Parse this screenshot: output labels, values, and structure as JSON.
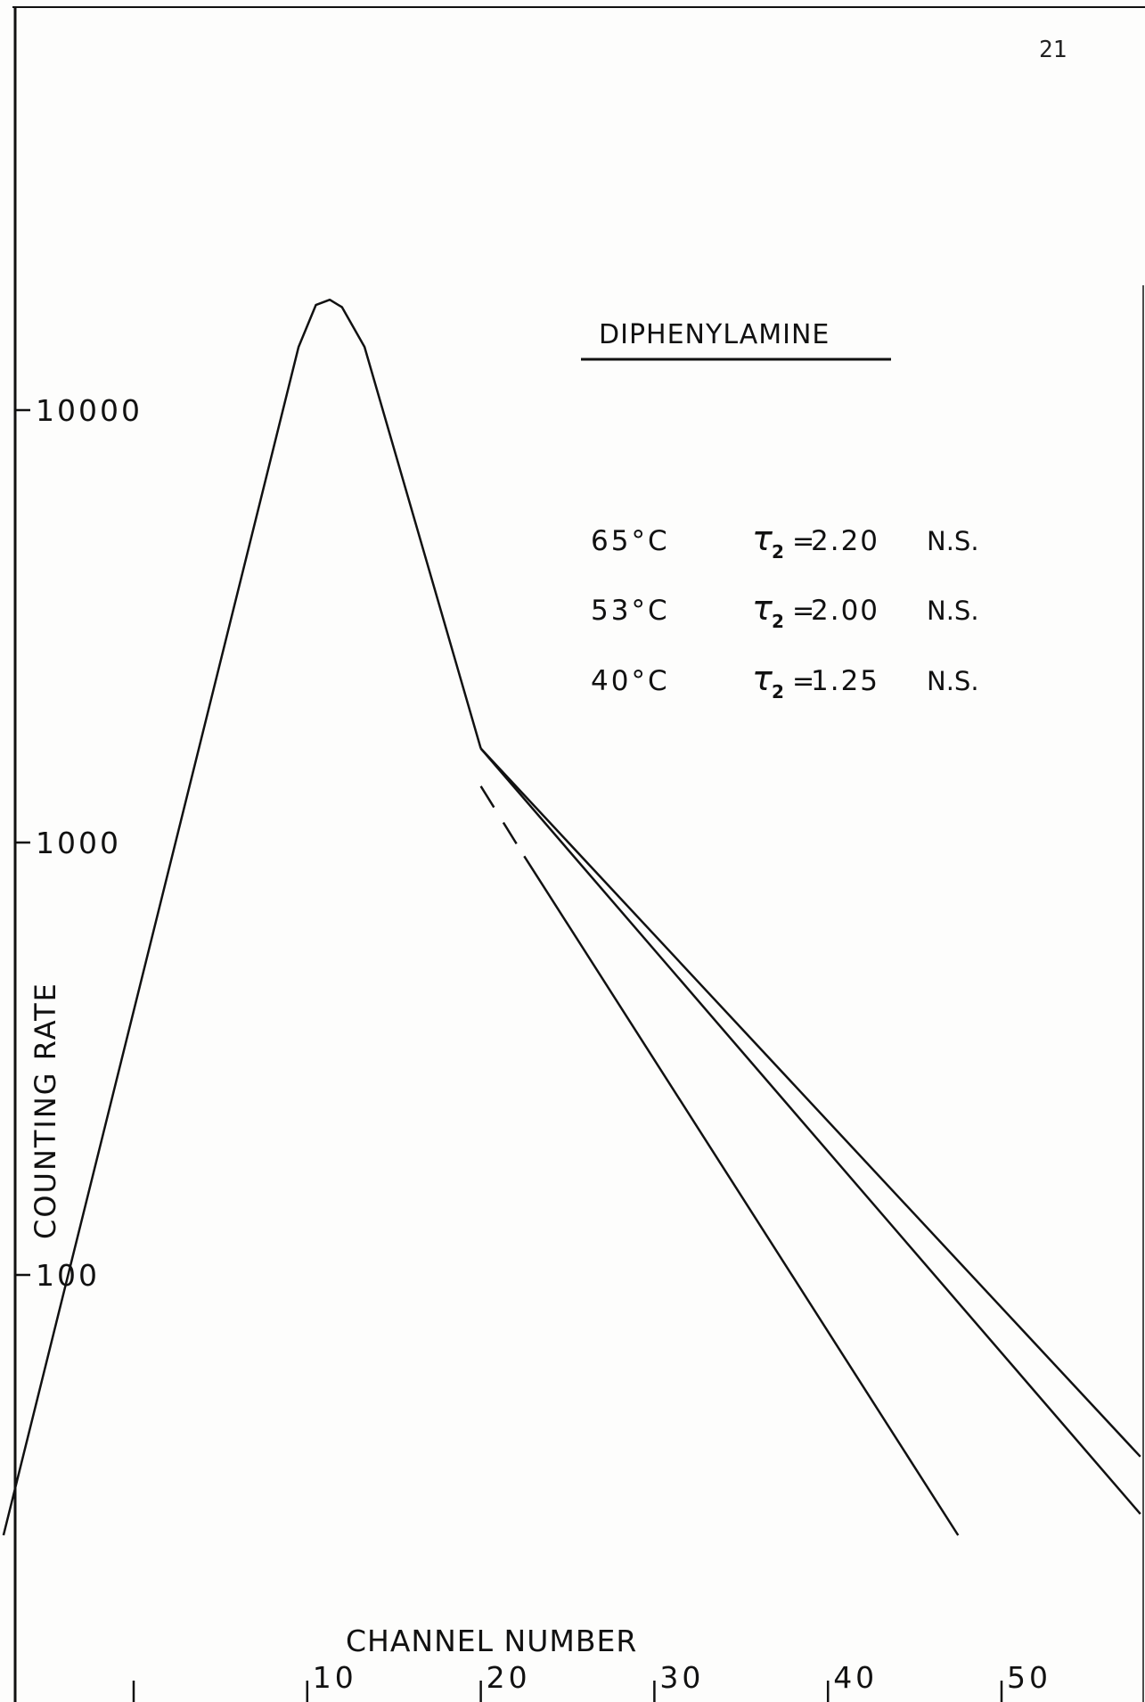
{
  "page": {
    "number": "21"
  },
  "chart_data": {
    "type": "line",
    "title": "DIPHENYLAMINE",
    "xlabel": "CHANNEL NUMBER",
    "ylabel": "COUNTING RATE",
    "yscale": "log",
    "xlim": [
      0,
      58
    ],
    "ylim": [
      25,
      90000
    ],
    "x_ticks": [
      0,
      10,
      20,
      30,
      40,
      50
    ],
    "x_tick_labels": [
      "",
      "10",
      "20",
      "30",
      "40",
      "50"
    ],
    "y_ticks": [
      100,
      1000,
      10000
    ],
    "y_tick_labels": [
      "100",
      "1000",
      "10000"
    ],
    "grid": false,
    "legend": [
      {
        "temperature": "65°C",
        "symbol": "τ",
        "subscript": "2",
        "equals": "=",
        "value": "2.20",
        "unit": "N.S."
      },
      {
        "temperature": "53°C",
        "symbol": "τ",
        "subscript": "2",
        "equals": "=",
        "value": "2.00",
        "unit": "N.S."
      },
      {
        "temperature": "40°C",
        "symbol": "τ",
        "subscript": "2",
        "equals": "=",
        "value": "1.25",
        "unit": "N.S."
      }
    ],
    "series": [
      {
        "style": "solid",
        "x": [
          -7.5,
          9.5,
          10.5,
          11.3,
          12.0,
          13.3,
          20.0
        ],
        "y": [
          25,
          14000,
          17500,
          18000,
          17300,
          14000,
          1650
        ]
      },
      {
        "style": "solid",
        "x": [
          20.0,
          58.0
        ],
        "y": [
          1650,
          38
        ]
      },
      {
        "style": "solid",
        "x": [
          20.0,
          58.0
        ],
        "y": [
          1650,
          28
        ]
      },
      {
        "style": "solid",
        "x": [
          22.5,
          47.5
        ],
        "y": [
          930,
          25
        ]
      },
      {
        "style": "dashed",
        "x": [
          20.0,
          22.5
        ],
        "y": [
          1350,
          930
        ]
      }
    ],
    "colors": {
      "ink": "#111111",
      "paper": "#fdfdfc"
    }
  }
}
